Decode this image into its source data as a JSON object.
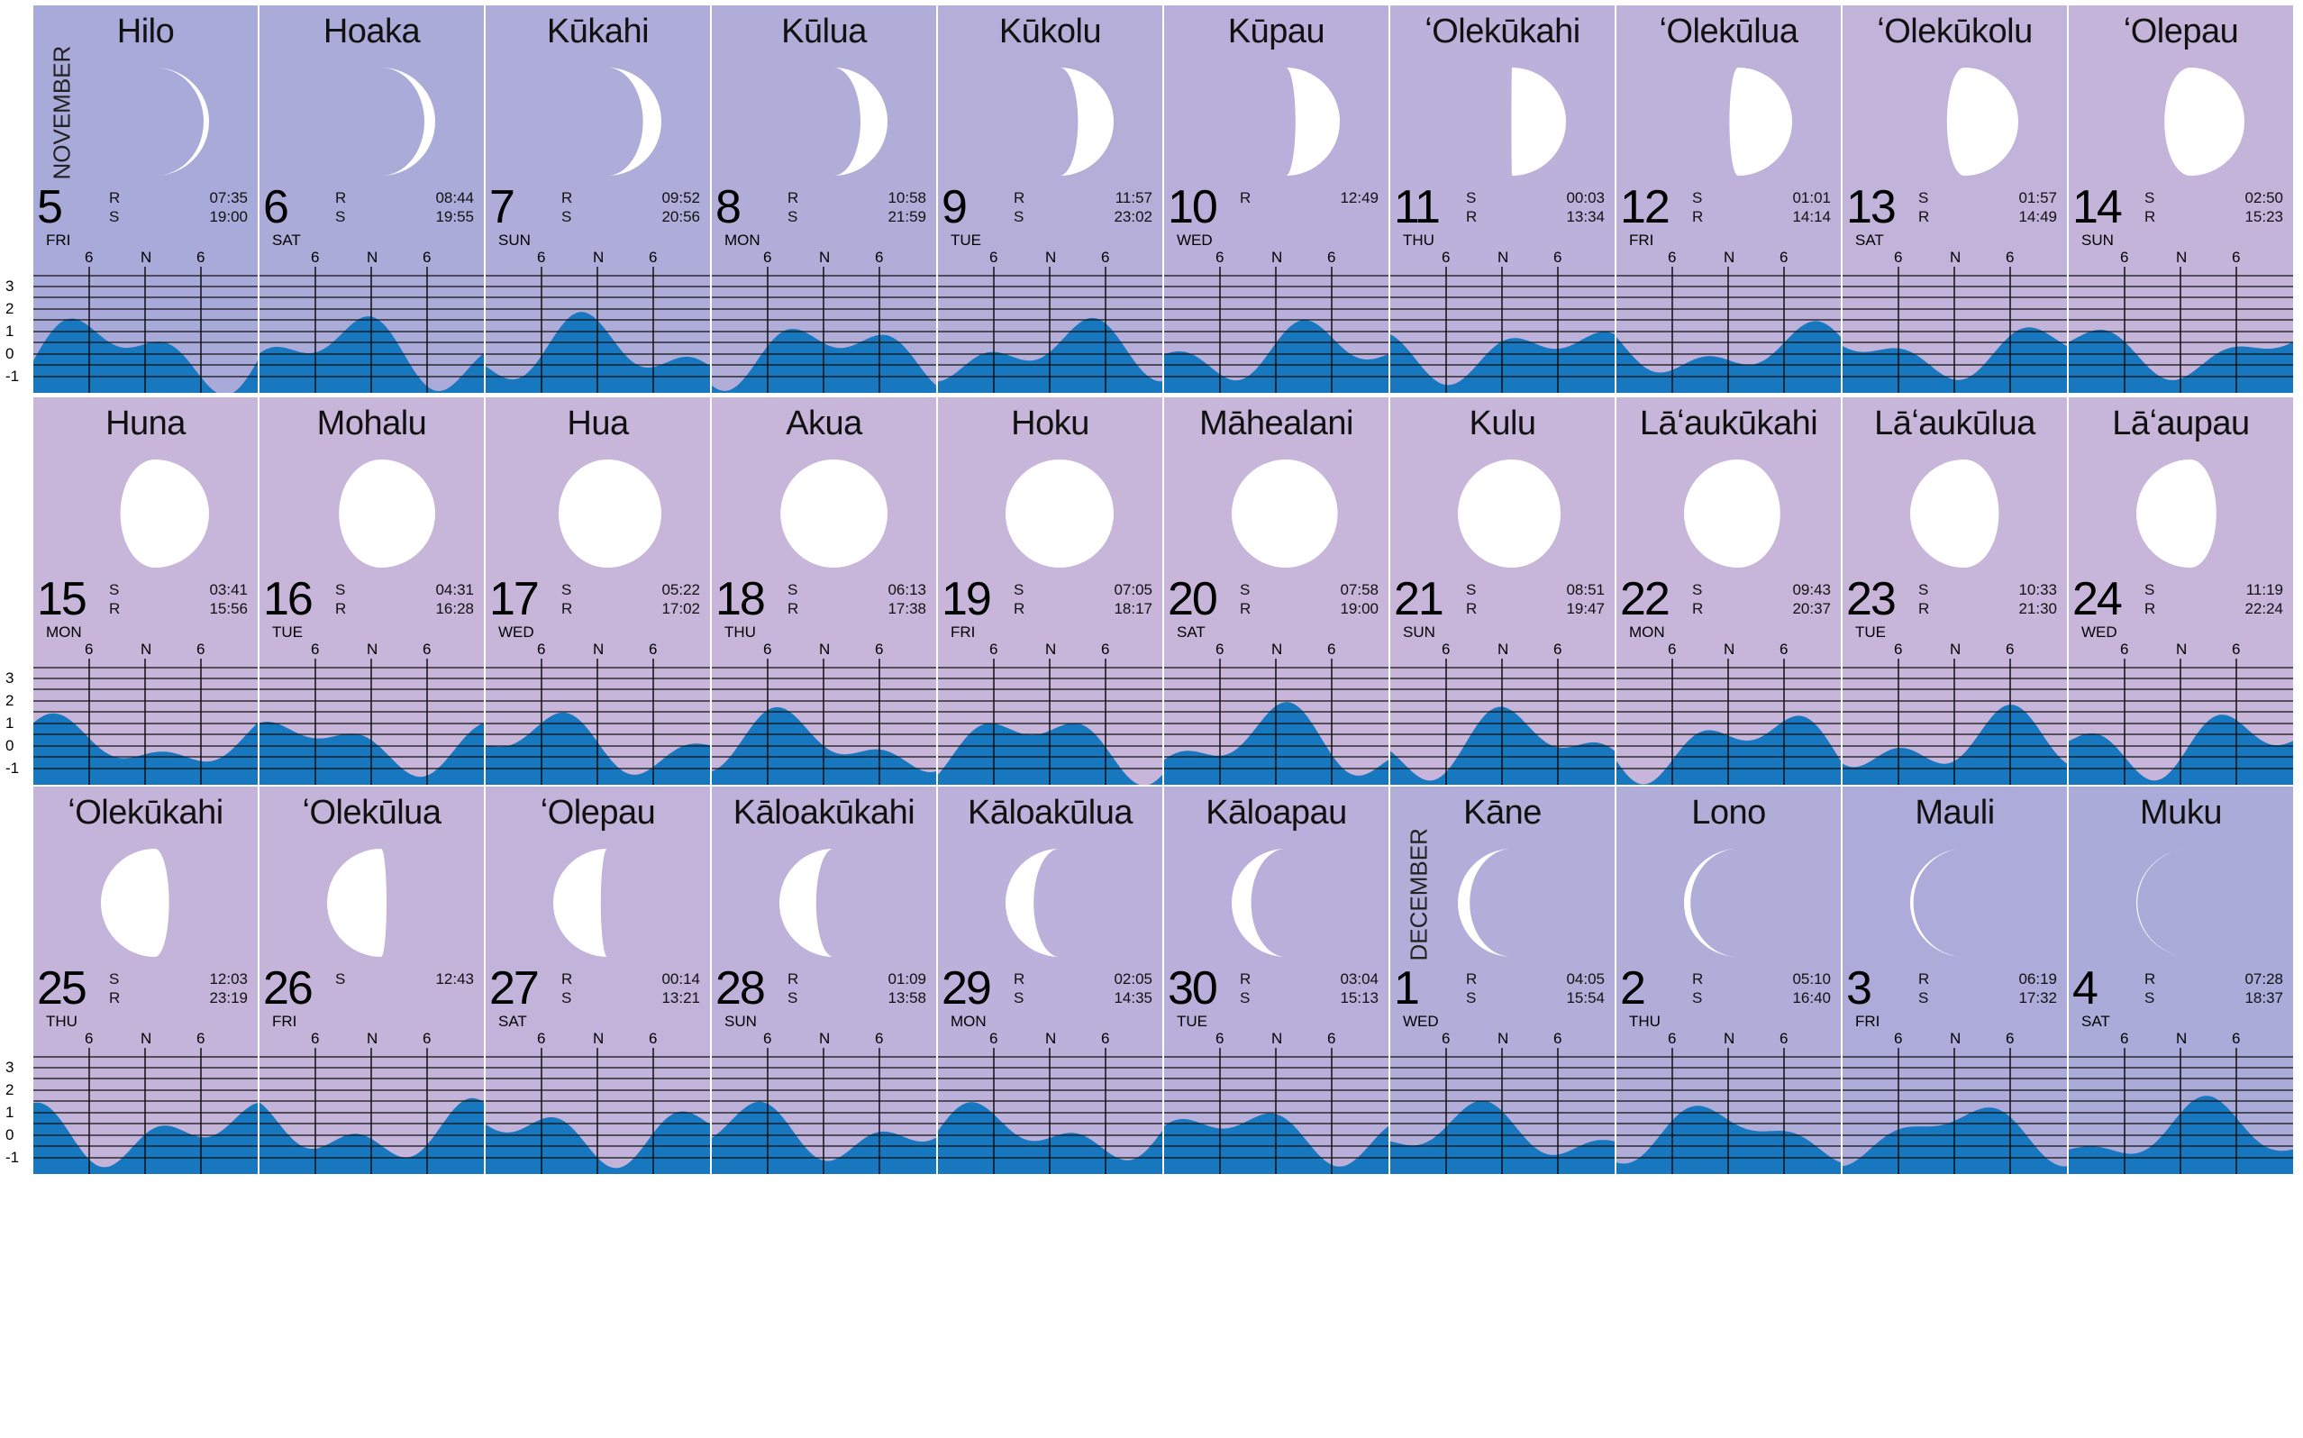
{
  "colors": {
    "background_blue": "#a8aad9",
    "background_lavender": "#c7b5da",
    "tide_fill": "#1777bf",
    "grid_lines": "#111111",
    "moon": "#ffffff"
  },
  "y_axis_labels": [
    "3",
    "2",
    "1",
    "0",
    "-1"
  ],
  "hour_labels": [
    "6",
    "N",
    "6"
  ],
  "rows": [
    {
      "days": [
        {
          "name": "Hilo",
          "day": "5",
          "dow": "FRI",
          "month_label": "NOVEMBER",
          "illum": 0.05,
          "waxing": true,
          "events": [
            {
              "type": "R",
              "time": "07:35"
            },
            {
              "type": "S",
              "time": "19:00"
            }
          ]
        },
        {
          "name": "Hoaka",
          "day": "6",
          "dow": "SAT",
          "illum": 0.1,
          "waxing": true,
          "events": [
            {
              "type": "R",
              "time": "08:44"
            },
            {
              "type": "S",
              "time": "19:55"
            }
          ]
        },
        {
          "name": "Kūkahi",
          "day": "7",
          "dow": "SUN",
          "illum": 0.17,
          "waxing": true,
          "events": [
            {
              "type": "R",
              "time": "09:52"
            },
            {
              "type": "S",
              "time": "20:56"
            }
          ]
        },
        {
          "name": "Kūlua",
          "day": "8",
          "dow": "MON",
          "illum": 0.25,
          "waxing": true,
          "events": [
            {
              "type": "R",
              "time": "10:58"
            },
            {
              "type": "S",
              "time": "21:59"
            }
          ]
        },
        {
          "name": "Kūkolu",
          "day": "9",
          "dow": "TUE",
          "illum": 0.33,
          "waxing": true,
          "events": [
            {
              "type": "R",
              "time": "11:57"
            },
            {
              "type": "S",
              "time": "23:02"
            }
          ]
        },
        {
          "name": "Kūpau",
          "day": "10",
          "dow": "WED",
          "illum": 0.41,
          "waxing": true,
          "events": [
            {
              "type": "R",
              "time": "12:49"
            }
          ]
        },
        {
          "name": "ʻOlekūkahi",
          "day": "11",
          "dow": "THU",
          "illum": 0.5,
          "waxing": true,
          "events": [
            {
              "type": "S",
              "time": "00:03"
            },
            {
              "type": "R",
              "time": "13:34"
            }
          ]
        },
        {
          "name": "ʻOlekūlua",
          "day": "12",
          "dow": "FRI",
          "illum": 0.58,
          "waxing": true,
          "events": [
            {
              "type": "S",
              "time": "01:01"
            },
            {
              "type": "R",
              "time": "14:14"
            }
          ]
        },
        {
          "name": "ʻOlekūkolu",
          "day": "13",
          "dow": "SAT",
          "illum": 0.66,
          "waxing": true,
          "events": [
            {
              "type": "S",
              "time": "01:57"
            },
            {
              "type": "R",
              "time": "14:49"
            }
          ]
        },
        {
          "name": "ʻOlepau",
          "day": "14",
          "dow": "SUN",
          "illum": 0.74,
          "waxing": true,
          "events": [
            {
              "type": "S",
              "time": "02:50"
            },
            {
              "type": "R",
              "time": "15:23"
            }
          ]
        }
      ]
    },
    {
      "days": [
        {
          "name": "Huna",
          "day": "15",
          "dow": "MON",
          "illum": 0.82,
          "waxing": true,
          "events": [
            {
              "type": "S",
              "time": "03:41"
            },
            {
              "type": "R",
              "time": "15:56"
            }
          ]
        },
        {
          "name": "Mohalu",
          "day": "16",
          "dow": "TUE",
          "illum": 0.89,
          "waxing": true,
          "events": [
            {
              "type": "S",
              "time": "04:31"
            },
            {
              "type": "R",
              "time": "16:28"
            }
          ]
        },
        {
          "name": "Hua",
          "day": "17",
          "dow": "WED",
          "illum": 0.95,
          "waxing": true,
          "events": [
            {
              "type": "S",
              "time": "05:22"
            },
            {
              "type": "R",
              "time": "17:02"
            }
          ]
        },
        {
          "name": "Akua",
          "day": "18",
          "dow": "THU",
          "illum": 0.99,
          "waxing": true,
          "events": [
            {
              "type": "S",
              "time": "06:13"
            },
            {
              "type": "R",
              "time": "17:38"
            }
          ]
        },
        {
          "name": "Hoku",
          "day": "19",
          "dow": "FRI",
          "illum": 1.0,
          "waxing": true,
          "events": [
            {
              "type": "S",
              "time": "07:05"
            },
            {
              "type": "R",
              "time": "18:17"
            }
          ]
        },
        {
          "name": "Māhealani",
          "day": "20",
          "dow": "SAT",
          "illum": 0.98,
          "waxing": false,
          "events": [
            {
              "type": "S",
              "time": "07:58"
            },
            {
              "type": "R",
              "time": "19:00"
            }
          ]
        },
        {
          "name": "Kulu",
          "day": "21",
          "dow": "SUN",
          "illum": 0.95,
          "waxing": false,
          "events": [
            {
              "type": "S",
              "time": "08:51"
            },
            {
              "type": "R",
              "time": "19:47"
            }
          ]
        },
        {
          "name": "Lāʻaukūkahi",
          "day": "22",
          "dow": "MON",
          "illum": 0.89,
          "waxing": false,
          "events": [
            {
              "type": "S",
              "time": "09:43"
            },
            {
              "type": "R",
              "time": "20:37"
            }
          ]
        },
        {
          "name": "Lāʻaukūlua",
          "day": "23",
          "dow": "TUE",
          "illum": 0.82,
          "waxing": false,
          "events": [
            {
              "type": "S",
              "time": "10:33"
            },
            {
              "type": "R",
              "time": "21:30"
            }
          ]
        },
        {
          "name": "Lāʻaupau",
          "day": "24",
          "dow": "WED",
          "illum": 0.74,
          "waxing": false,
          "events": [
            {
              "type": "S",
              "time": "11:19"
            },
            {
              "type": "R",
              "time": "22:24"
            }
          ]
        }
      ]
    },
    {
      "days": [
        {
          "name": "ʻOlekūkahi",
          "day": "25",
          "dow": "THU",
          "illum": 0.63,
          "waxing": false,
          "events": [
            {
              "type": "S",
              "time": "12:03"
            },
            {
              "type": "R",
              "time": "23:19"
            }
          ]
        },
        {
          "name": "ʻOlekūlua",
          "day": "26",
          "dow": "FRI",
          "illum": 0.55,
          "waxing": false,
          "events": [
            {
              "type": "S",
              "time": "12:43"
            }
          ]
        },
        {
          "name": "ʻOlepau",
          "day": "27",
          "dow": "SAT",
          "illum": 0.44,
          "waxing": false,
          "events": [
            {
              "type": "R",
              "time": "00:14"
            },
            {
              "type": "S",
              "time": "13:21"
            }
          ]
        },
        {
          "name": "Kāloakūkahi",
          "day": "28",
          "dow": "SUN",
          "illum": 0.34,
          "waxing": false,
          "events": [
            {
              "type": "R",
              "time": "01:09"
            },
            {
              "type": "S",
              "time": "13:58"
            }
          ]
        },
        {
          "name": "Kāloakūlua",
          "day": "29",
          "dow": "MON",
          "illum": 0.26,
          "waxing": false,
          "events": [
            {
              "type": "R",
              "time": "02:05"
            },
            {
              "type": "S",
              "time": "14:35"
            }
          ]
        },
        {
          "name": "Kāloapau",
          "day": "30",
          "dow": "TUE",
          "illum": 0.18,
          "waxing": false,
          "events": [
            {
              "type": "R",
              "time": "03:04"
            },
            {
              "type": "S",
              "time": "15:13"
            }
          ]
        },
        {
          "name": "Kāne",
          "day": "1",
          "dow": "WED",
          "month_label": "DECEMBER",
          "illum": 0.11,
          "waxing": false,
          "events": [
            {
              "type": "R",
              "time": "04:05"
            },
            {
              "type": "S",
              "time": "15:54"
            }
          ]
        },
        {
          "name": "Lono",
          "day": "2",
          "dow": "THU",
          "illum": 0.06,
          "waxing": false,
          "events": [
            {
              "type": "R",
              "time": "05:10"
            },
            {
              "type": "S",
              "time": "16:40"
            }
          ]
        },
        {
          "name": "Mauli",
          "day": "3",
          "dow": "FRI",
          "illum": 0.03,
          "waxing": false,
          "events": [
            {
              "type": "R",
              "time": "06:19"
            },
            {
              "type": "S",
              "time": "17:32"
            }
          ]
        },
        {
          "name": "Muku",
          "day": "4",
          "dow": "SAT",
          "illum": 0.01,
          "waxing": false,
          "events": [
            {
              "type": "R",
              "time": "07:28"
            },
            {
              "type": "S",
              "time": "18:37"
            }
          ]
        }
      ]
    }
  ]
}
